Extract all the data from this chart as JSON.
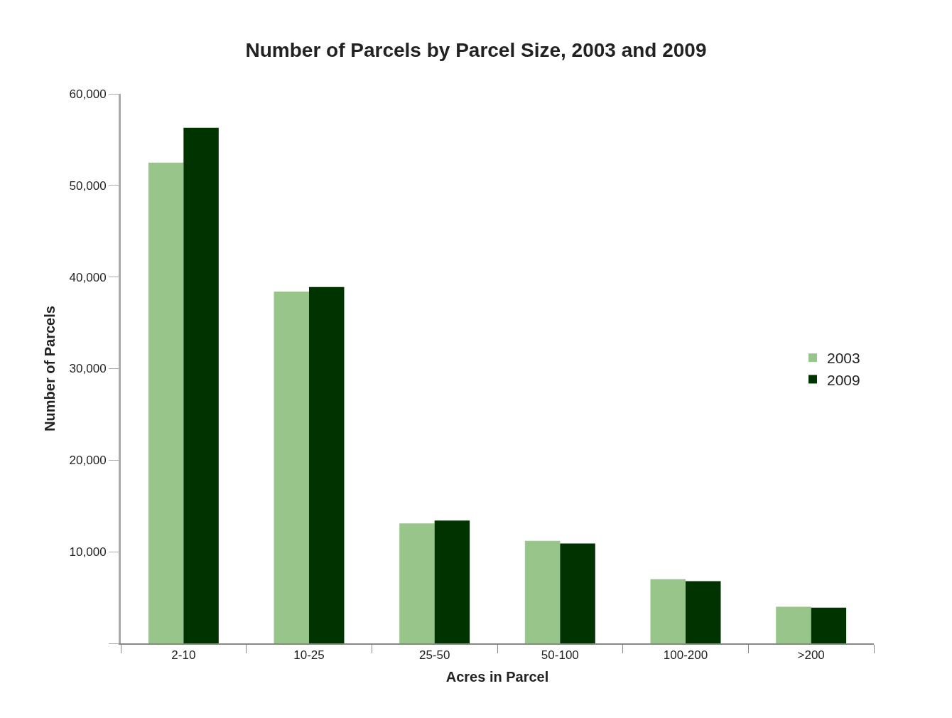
{
  "chart_data": {
    "type": "bar",
    "title": "Number of Parcels by Parcel Size, 2003 and 2009",
    "xlabel": "Acres in Parcel",
    "ylabel": "Number of Parcels",
    "categories": [
      "2-10",
      "10-25",
      "25-50",
      "50-100",
      "100-200",
      ">200"
    ],
    "series": [
      {
        "name": "2003",
        "color": "#98c68a",
        "values": [
          52500,
          38400,
          13100,
          11200,
          7000,
          4000
        ]
      },
      {
        "name": "2009",
        "color": "#003300",
        "values": [
          56300,
          38900,
          13400,
          10900,
          6800,
          3900
        ]
      }
    ],
    "ylim": [
      0,
      60000
    ],
    "yticks": [
      {
        "value": 0,
        "label": null
      },
      {
        "value": 10000,
        "label": "10,000"
      },
      {
        "value": 20000,
        "label": "20,000"
      },
      {
        "value": 30000,
        "label": "30,000"
      },
      {
        "value": 40000,
        "label": "40,000"
      },
      {
        "value": 50000,
        "label": "50,000"
      },
      {
        "value": 60000,
        "label": "60,000"
      }
    ],
    "legend": "right"
  }
}
